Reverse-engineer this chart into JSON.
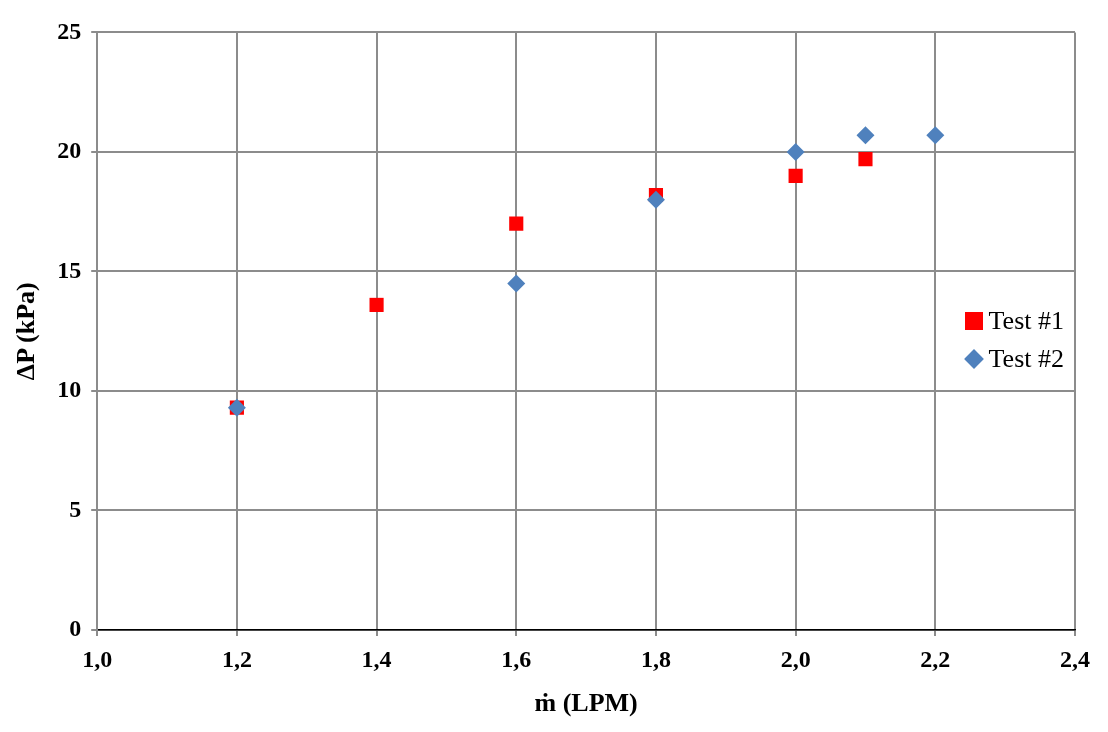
{
  "chart_data": {
    "type": "scatter",
    "xlabel": "ṁ (LPM)",
    "ylabel": "ΔP (kPa)",
    "xlim": [
      1.0,
      2.4
    ],
    "xticks": [
      {
        "value": 1.0,
        "label": "1,0"
      },
      {
        "value": 1.2,
        "label": "1,2"
      },
      {
        "value": 1.4,
        "label": "1,4"
      },
      {
        "value": 1.6,
        "label": "1,6"
      },
      {
        "value": 1.8,
        "label": "1,8"
      },
      {
        "value": 2.0,
        "label": "2,0"
      },
      {
        "value": 2.2,
        "label": "2,2"
      },
      {
        "value": 2.4,
        "label": "2,4"
      }
    ],
    "ylim": [
      0,
      25
    ],
    "yticks": [
      0,
      5,
      10,
      15,
      20,
      25
    ],
    "grid": true,
    "legend": "right",
    "series": [
      {
        "name": "Test #1",
        "color": "#ff0000",
        "marker": "square",
        "x": [
          1.2,
          1.4,
          1.6,
          1.8,
          2.0,
          2.1
        ],
        "values": [
          9.3,
          13.6,
          17.0,
          18.2,
          19.0,
          19.7
        ]
      },
      {
        "name": "Test #2",
        "color": "#4f81bd",
        "marker": "diamond",
        "x": [
          1.2,
          1.6,
          1.8,
          2.0,
          2.1,
          2.2
        ],
        "values": [
          9.3,
          14.5,
          18.0,
          20.0,
          20.7,
          20.7
        ]
      }
    ]
  }
}
